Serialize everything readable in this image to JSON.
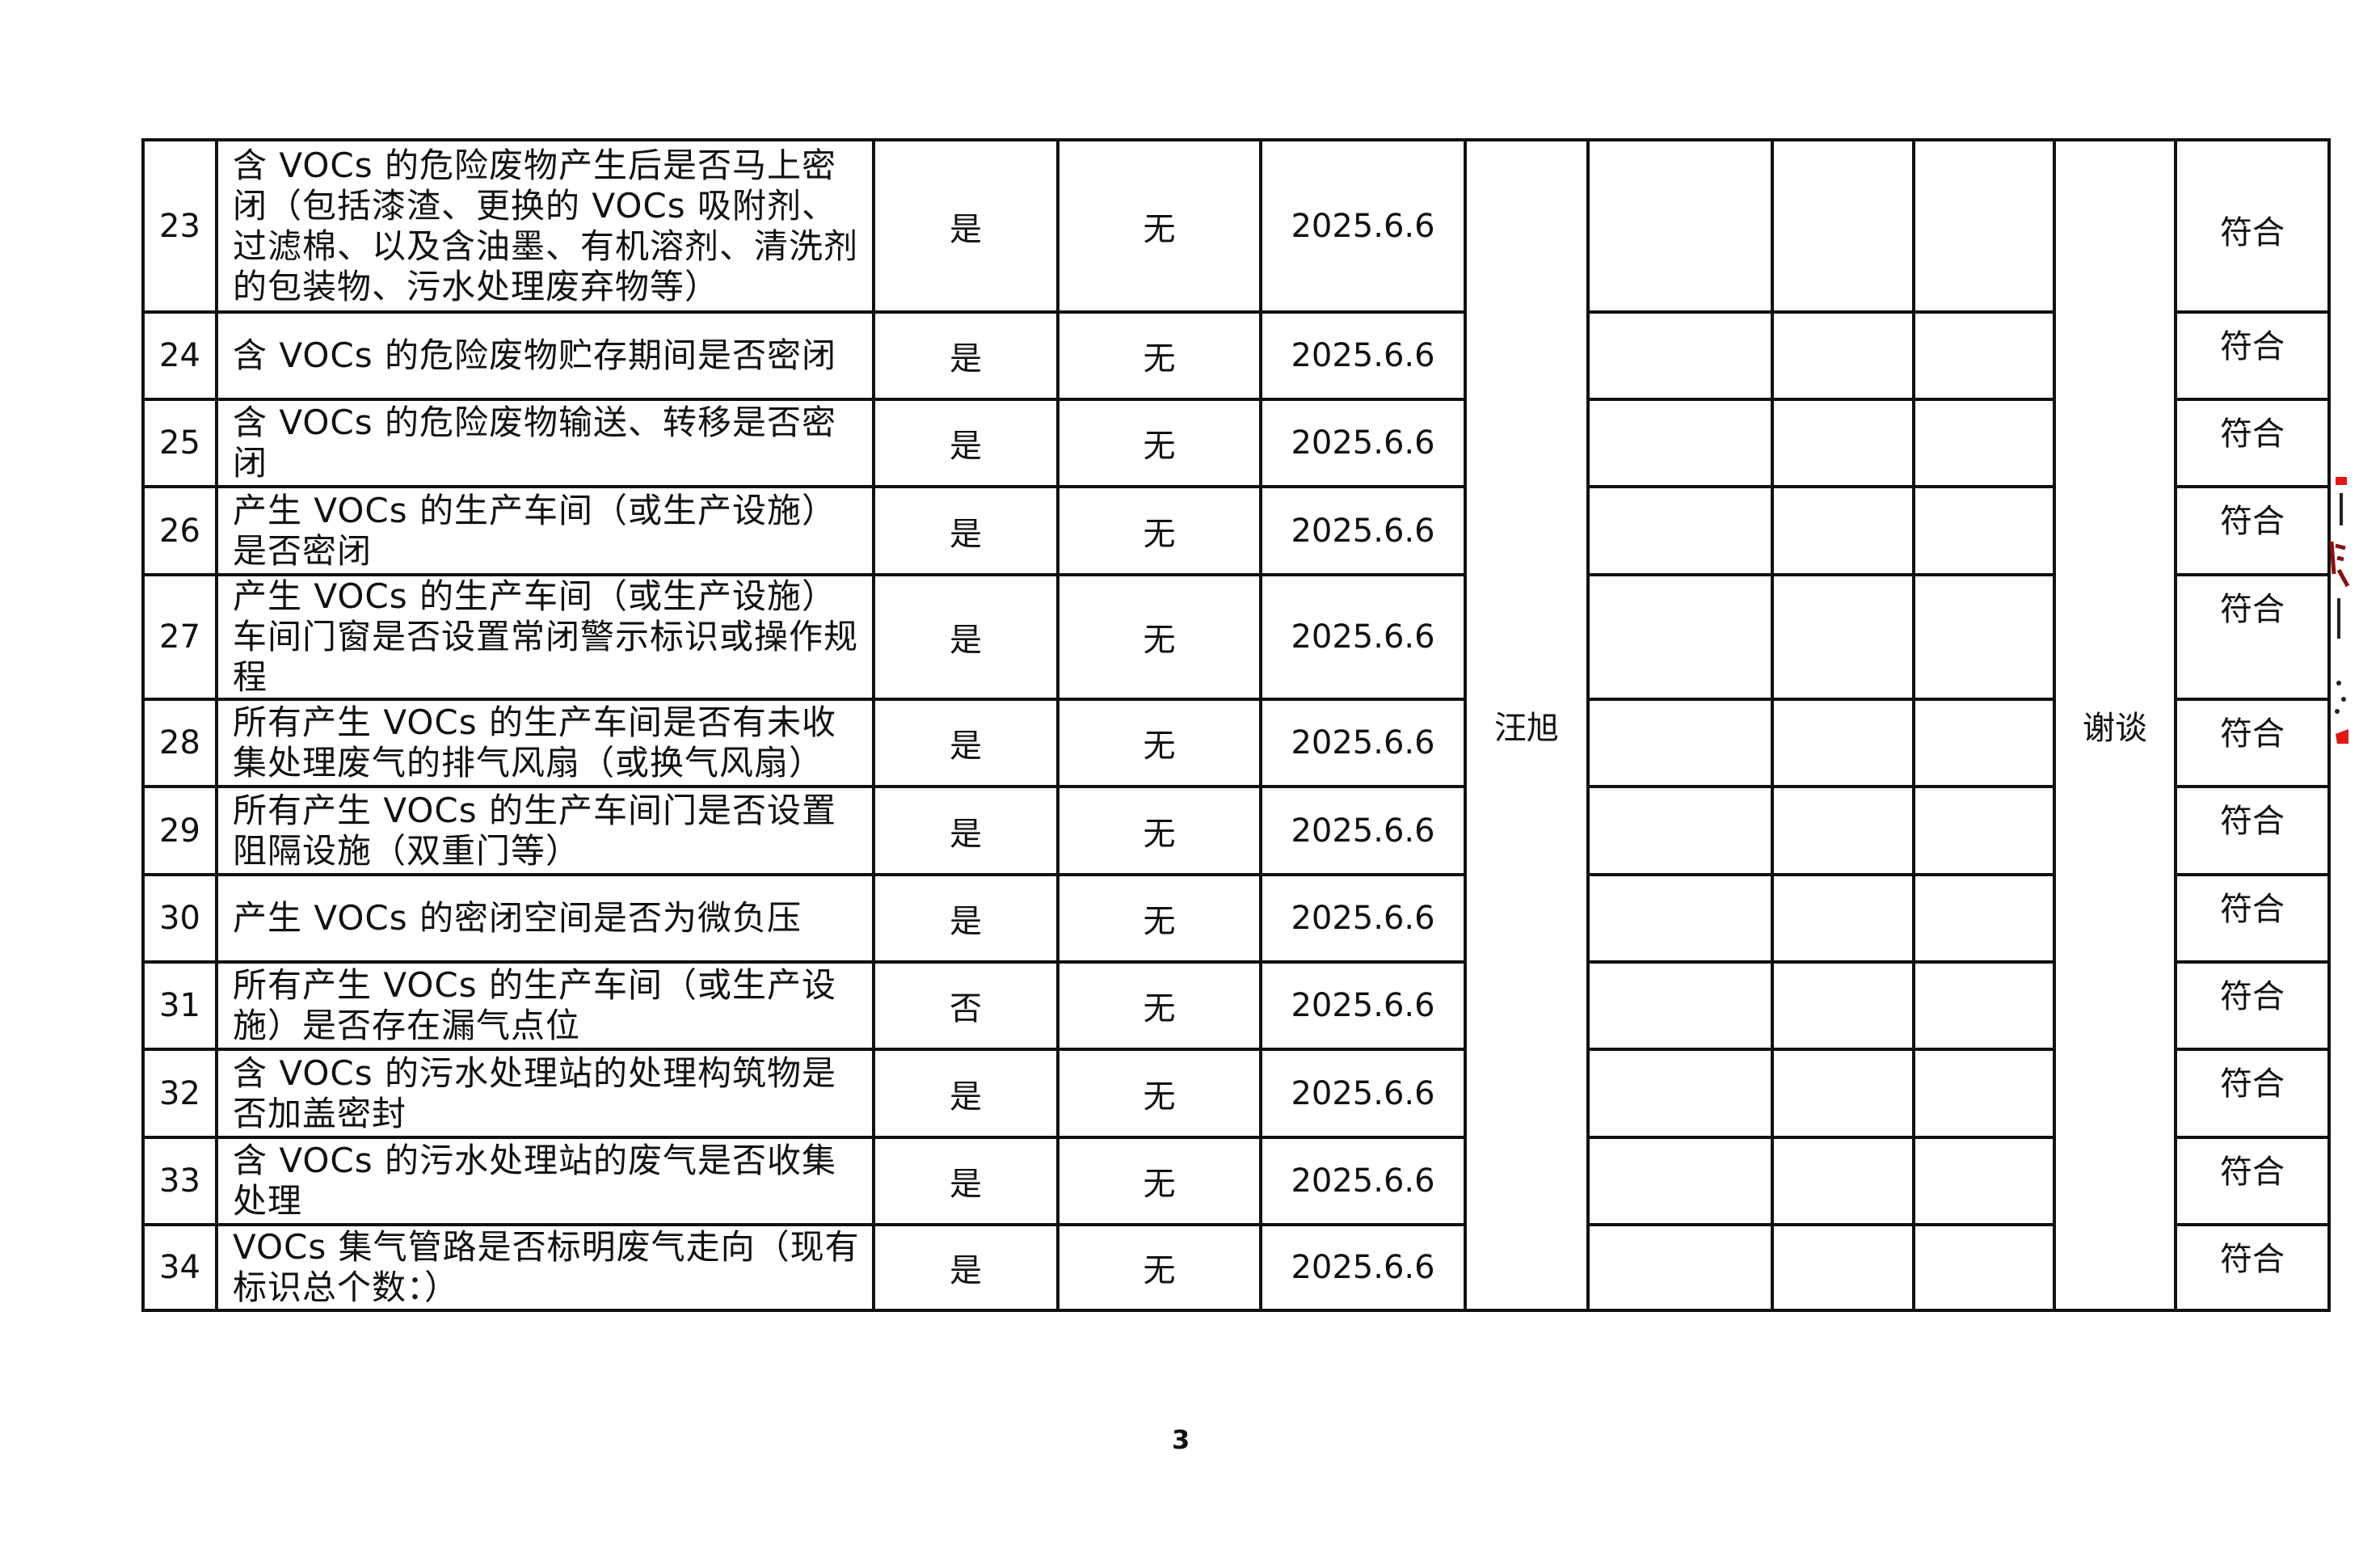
{
  "table": {
    "inspector": "汪旭",
    "method": "谢谈",
    "rows": [
      {
        "no": "23",
        "item": "含 VOCs 的危险废物产生后是否马上密闭（包括漆渣、更换的 VOCs 吸附剂、过滤棉、以及含油墨、有机溶剂、清洗剂的包装物、污水处理废弃物等）",
        "answer": "是",
        "issue": "无",
        "date": "2025.6.6",
        "result": "符合"
      },
      {
        "no": "24",
        "item": "含 VOCs 的危险废物贮存期间是否密闭",
        "answer": "是",
        "issue": "无",
        "date": "2025.6.6",
        "result": "符合"
      },
      {
        "no": "25",
        "item": "含 VOCs 的危险废物输送、转移是否密闭",
        "answer": "是",
        "issue": "无",
        "date": "2025.6.6",
        "result": "符合"
      },
      {
        "no": "26",
        "item": "产生 VOCs 的生产车间（或生产设施）是否密闭",
        "answer": "是",
        "issue": "无",
        "date": "2025.6.6",
        "result": "符合"
      },
      {
        "no": "27",
        "item": "产生 VOCs 的生产车间（或生产设施）车间门窗是否设置常闭警示标识或操作规程",
        "answer": "是",
        "issue": "无",
        "date": "2025.6.6",
        "result": "符合"
      },
      {
        "no": "28",
        "item": "所有产生 VOCs 的生产车间是否有未收集处理废气的排气风扇（或换气风扇）",
        "answer": "是",
        "issue": "无",
        "date": "2025.6.6",
        "result": "符合"
      },
      {
        "no": "29",
        "item": "所有产生 VOCs 的生产车间门是否设置阻隔设施（双重门等）",
        "answer": "是",
        "issue": "无",
        "date": "2025.6.6",
        "result": "符合"
      },
      {
        "no": "30",
        "item": "产生 VOCs 的密闭空间是否为微负压",
        "answer": "是",
        "issue": "无",
        "date": "2025.6.6",
        "result": "符合"
      },
      {
        "no": "31",
        "item": "所有产生 VOCs 的生产车间（或生产设施）是否存在漏气点位",
        "answer": "否",
        "issue": "无",
        "date": "2025.6.6",
        "result": "符合"
      },
      {
        "no": "32",
        "item": "含 VOCs 的污水处理站的处理构筑物是否加盖密封",
        "answer": "是",
        "issue": "无",
        "date": "2025.6.6",
        "result": "符合"
      },
      {
        "no": "33",
        "item": "含 VOCs 的污水处理站的废气是否收集处理",
        "answer": "是",
        "issue": "无",
        "date": "2025.6.6",
        "result": "符合"
      },
      {
        "no": "34",
        "item": "VOCs 集气管路是否标明废气走向（现有标识总个数：）",
        "answer": "是",
        "issue": "无",
        "date": "2025.6.6",
        "result": "符合"
      }
    ]
  },
  "page_number": "3",
  "seal_color": "#e01818"
}
